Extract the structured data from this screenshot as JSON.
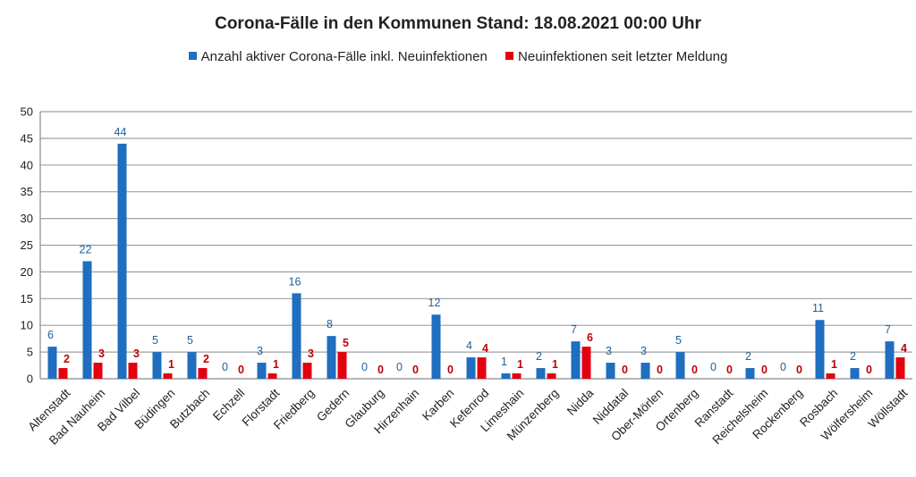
{
  "chart_data": {
    "type": "bar",
    "title": "Corona-Fälle in den Kommunen Stand: 18.08.2021 00:00 Uhr",
    "categories": [
      "Altenstadt",
      "Bad Nauheim",
      "Bad Vilbel",
      "Büdingen",
      "Butzbach",
      "Echzell",
      "Florstadt",
      "Friedberg",
      "Gedern",
      "Glauburg",
      "Hirzenhain",
      "Karben",
      "Kefenrod",
      "Limeshain",
      "Münzenberg",
      "Nidda",
      "Niddatal",
      "Ober-Mörlen",
      "Ortenberg",
      "Ranstadt",
      "Reichelsheim",
      "Rockenberg",
      "Rosbach",
      "Wölfersheim",
      "Wöllstadt"
    ],
    "series": [
      {
        "name": "Anzahl aktiver Corona-Fälle inkl. Neuinfektionen",
        "color": "#1f6ebf",
        "values": [
          6,
          22,
          44,
          5,
          5,
          0,
          3,
          16,
          8,
          0,
          0,
          12,
          4,
          1,
          2,
          7,
          3,
          3,
          5,
          0,
          2,
          0,
          11,
          2,
          7
        ]
      },
      {
        "name": "Neuinfektionen seit letzter Meldung",
        "color": "#e3000f",
        "values": [
          2,
          3,
          3,
          1,
          2,
          0,
          1,
          3,
          5,
          0,
          0,
          0,
          4,
          1,
          1,
          6,
          0,
          0,
          0,
          0,
          0,
          0,
          1,
          0,
          4
        ]
      }
    ],
    "ylim": [
      0,
      50
    ],
    "yticks": [
      0,
      5,
      10,
      15,
      20,
      25,
      30,
      35,
      40,
      45,
      50
    ],
    "grid": true,
    "legend_position": "top"
  }
}
